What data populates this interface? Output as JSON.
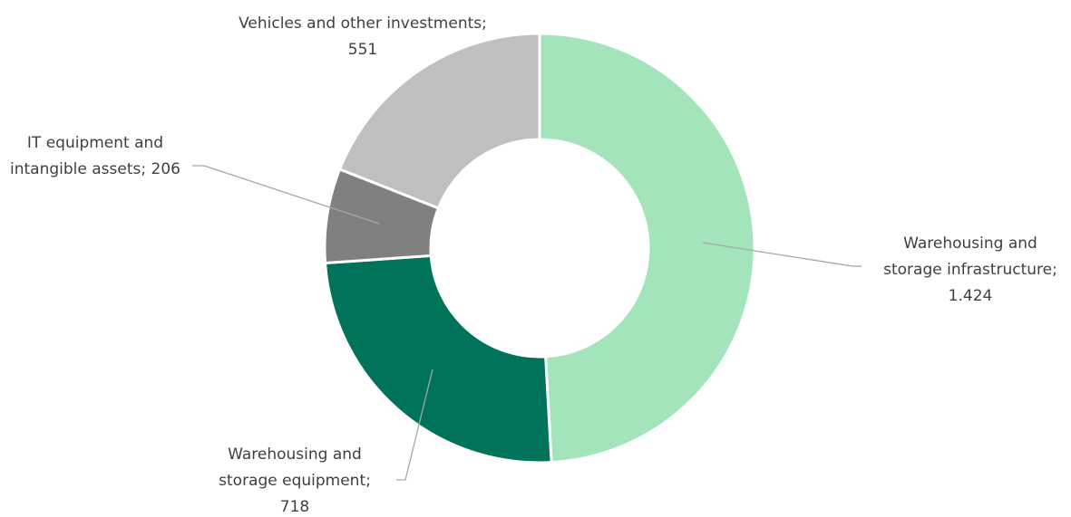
{
  "chart_data": {
    "type": "donut",
    "categories": [
      "Warehousing and storage infrastructure",
      "Warehousing and storage equipment",
      "IT equipment and intangible assets",
      "Vehicles and other investments"
    ],
    "values": [
      1424,
      718,
      206,
      551
    ],
    "value_labels": [
      "1.424",
      "718",
      "206",
      "551"
    ],
    "colors": [
      "#a3e4bb",
      "#00735a",
      "#808080",
      "#bfbfbf"
    ]
  }
}
